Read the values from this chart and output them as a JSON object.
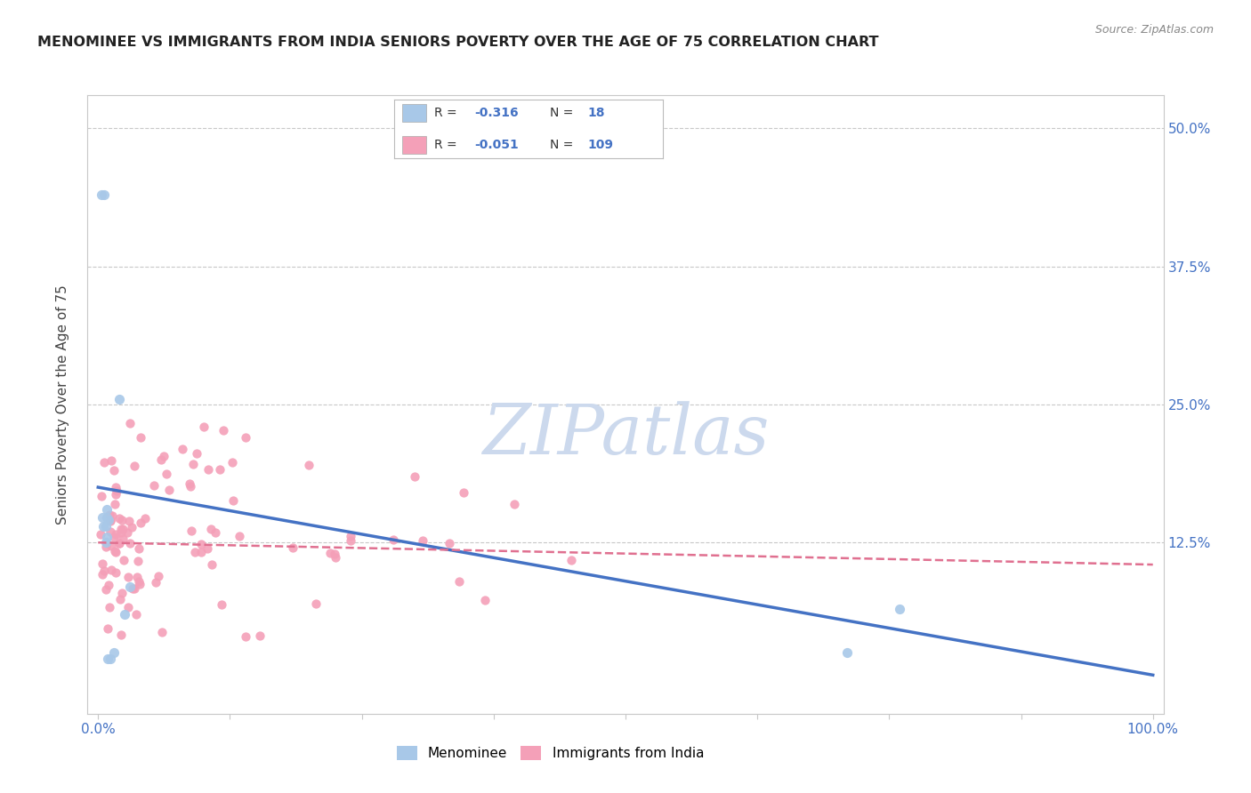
{
  "title": "MENOMINEE VS IMMIGRANTS FROM INDIA SENIORS POVERTY OVER THE AGE OF 75 CORRELATION CHART",
  "source": "Source: ZipAtlas.com",
  "ylabel": "Seniors Poverty Over the Age of 75",
  "xlim": [
    -0.01,
    1.01
  ],
  "ylim": [
    -0.03,
    0.53
  ],
  "xtick_positions": [
    0.0,
    0.125,
    0.25,
    0.375,
    0.5,
    0.625,
    0.75,
    0.875,
    1.0
  ],
  "xticklabels": [
    "0.0%",
    "",
    "",
    "",
    "",
    "",
    "",
    "",
    "100.0%"
  ],
  "ytick_positions": [
    0.0,
    0.125,
    0.25,
    0.375,
    0.5
  ],
  "yticklabels_right": [
    "",
    "12.5%",
    "25.0%",
    "37.5%",
    "50.0%"
  ],
  "grid_color": "#c8c8c8",
  "background_color": "#ffffff",
  "menominee_color": "#a8c8e8",
  "india_color": "#f4a0b8",
  "blue_line_color": "#4472c4",
  "pink_line_color": "#e07090",
  "tick_label_color": "#4472c4",
  "title_color": "#222222",
  "ylabel_color": "#444444",
  "source_color": "#888888",
  "legend_r_color": "#4472c4",
  "legend_label_color": "#333333",
  "watermark_color": "#ccd9ed",
  "menominee_x": [
    0.003,
    0.006,
    0.005,
    0.007,
    0.008,
    0.009,
    0.008,
    0.007,
    0.01,
    0.012,
    0.015,
    0.02,
    0.025,
    0.03,
    0.71,
    0.76,
    0.004,
    0.008
  ],
  "menominee_y": [
    0.44,
    0.44,
    0.14,
    0.14,
    0.155,
    0.02,
    0.13,
    0.125,
    0.145,
    0.02,
    0.025,
    0.255,
    0.06,
    0.085,
    0.025,
    0.065,
    0.148,
    0.148
  ],
  "blue_line_x": [
    0.0,
    1.0
  ],
  "blue_line_y": [
    0.175,
    0.005
  ],
  "pink_line_x": [
    0.0,
    1.0
  ],
  "pink_line_y": [
    0.125,
    0.105
  ],
  "menominee_r": -0.316,
  "menominee_n": 18,
  "india_r": -0.051,
  "india_n": 109
}
